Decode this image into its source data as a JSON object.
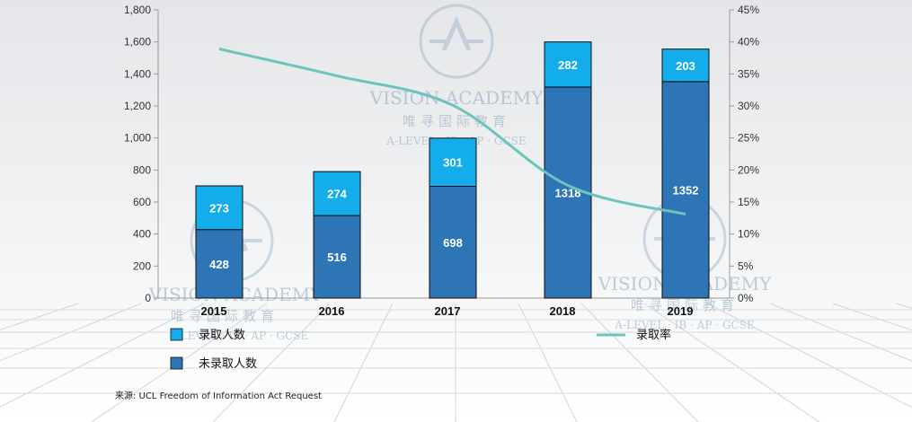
{
  "chart_data": {
    "type": "bar",
    "categories": [
      "2015",
      "2016",
      "2017",
      "2018",
      "2019"
    ],
    "series": [
      {
        "name": "未录取人数",
        "kind": "stacked-bar",
        "values": [
          428,
          516,
          698,
          1318,
          1352
        ],
        "color": "#2e75b6"
      },
      {
        "name": "录取人数",
        "kind": "stacked-bar",
        "values": [
          273,
          274,
          301,
          282,
          203
        ],
        "color": "#12adea"
      },
      {
        "name": "录取率",
        "kind": "line",
        "axis": "right",
        "values": [
          0.389,
          0.347,
          0.301,
          0.176,
          0.131
        ],
        "color": "#6cc4bd"
      }
    ],
    "y_left": {
      "lim": [
        0,
        1800
      ],
      "ticks": [
        "0",
        "200",
        "400",
        "600",
        "800",
        "1,000",
        "1,200",
        "1,400",
        "1,600",
        "1,800"
      ]
    },
    "y_right": {
      "lim": [
        0,
        0.45
      ],
      "ticks": [
        "0%",
        "5%",
        "10%",
        "15%",
        "20%",
        "25%",
        "30%",
        "35%",
        "40%",
        "45%"
      ]
    },
    "legend": {
      "placement": "bottom"
    },
    "grid": false,
    "source": "来源: UCL Freedom of Information Act Request"
  },
  "watermark": {
    "brand": "VISION ACADEMY",
    "chinese": "唯寻国际教育",
    "subjects": "A-LEVEL · IB · AP · GCSE",
    "subjects_partial": "LEVEL · IB · AP · GCSE"
  }
}
